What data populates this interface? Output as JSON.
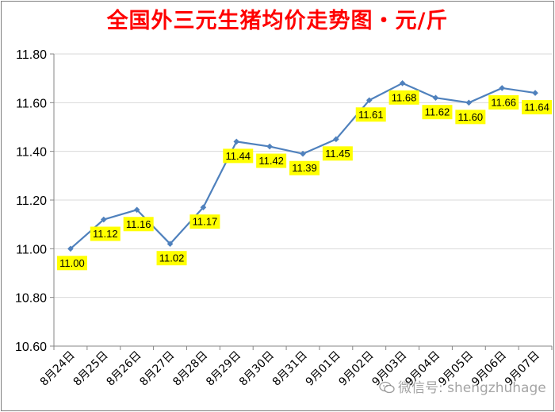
{
  "chart_data": {
    "type": "line",
    "title": "全国外三元生猪均价走势图・元/斤",
    "categories": [
      "8月24日",
      "8月25日",
      "8月26日",
      "8月27日",
      "8月28日",
      "8月29日",
      "8月30日",
      "8月31日",
      "9月01日",
      "9月02日",
      "9月03日",
      "9月04日",
      "9月05日",
      "9月06日",
      "9月07日"
    ],
    "series": [
      {
        "values": [
          11.0,
          11.12,
          11.16,
          11.02,
          11.17,
          11.44,
          11.42,
          11.39,
          11.45,
          11.61,
          11.68,
          11.62,
          11.6,
          11.66,
          11.64
        ]
      }
    ],
    "data_labels": [
      "11.00",
      "11.12",
      "11.16",
      "11.02",
      "11.17",
      "11.44",
      "11.42",
      "11.39",
      "11.45",
      "11.61",
      "11.68",
      "11.62",
      "11.60",
      "11.66",
      "11.64"
    ],
    "yticks": [
      "11.80",
      "11.60",
      "11.40",
      "11.20",
      "11.00",
      "10.80",
      "10.60"
    ],
    "ylim": [
      10.6,
      11.8
    ],
    "ytick_step": 0.2,
    "grid": "horizontal",
    "legend": "none",
    "colors": {
      "line": "#4f81bd",
      "grid": "#d9d9d9",
      "label_bg": "#ffff00",
      "title": "#ff0000"
    }
  },
  "watermark": {
    "text": "微信号: shengzhuhage",
    "icon": "wechat-icon"
  }
}
